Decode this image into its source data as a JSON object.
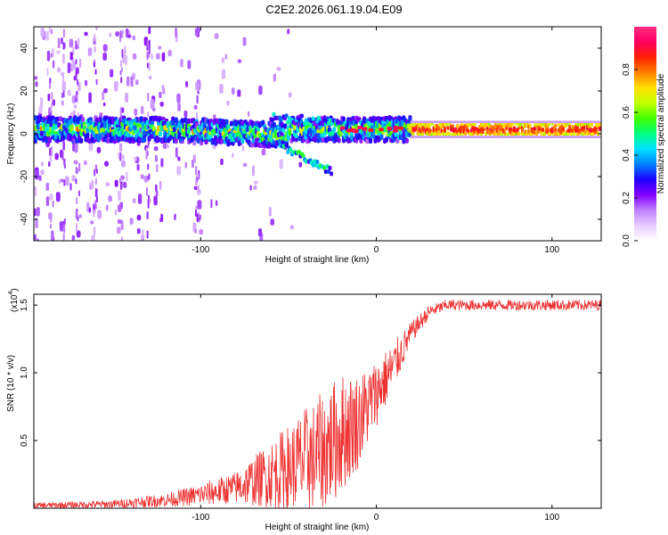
{
  "chart_data": [
    {
      "type": "heatmap",
      "title": "C2E2.2026.061.19.04.E09",
      "xlabel": "Height of straight line (km)",
      "ylabel": "Frequency (Hz)",
      "xlim": [
        -195,
        128
      ],
      "ylim": [
        -50,
        50
      ],
      "xticks": [
        -100,
        0,
        100
      ],
      "yticks": [
        -40,
        -20,
        0,
        20,
        40
      ],
      "colorbar": {
        "label": "Normalized spectral amplitude",
        "range": [
          0,
          1
        ],
        "ticks": [
          0.0,
          0.2,
          0.4,
          0.6,
          0.8
        ],
        "tick_labels": [
          "0.0",
          "0.2",
          "0.4",
          "0.6",
          "0.8"
        ],
        "colors": [
          "#ffffff",
          "#e6ccff",
          "#c080ff",
          "#8000ff",
          "#2000ff",
          "#0080ff",
          "#00e0ff",
          "#00ff80",
          "#40ff00",
          "#c0ff00",
          "#ffe000",
          "#ff8000",
          "#ff2000",
          "#ff0060",
          "#ff2a80"
        ]
      },
      "features": {
        "main_band_center_hz": 2,
        "main_band_halfwidth_hz": 5,
        "scatter_region_km": [
          -195,
          -20
        ],
        "branch_km": [
          -60,
          -25
        ],
        "branch_upper_hz": 8,
        "branch_lower_hz": -15,
        "stable_region_km": [
          20,
          128
        ]
      }
    },
    {
      "type": "line",
      "xlabel": "Height of straight line (km)",
      "ylabel": "SNR (10 * v/v)",
      "multiplier_label": "(x10",
      "multiplier_exponent": "4",
      "multiplier_close": ")",
      "xlim": [
        -195,
        128
      ],
      "ylim": [
        0,
        1.58
      ],
      "xticks": [
        -100,
        0,
        100
      ],
      "yticks": [
        0.5,
        1.0,
        1.5
      ],
      "ytick_labels": [
        "0.5",
        "1.0",
        "1.5"
      ],
      "color": "#ee3333",
      "series": [
        {
          "name": "SNR",
          "envelope_x": [
            -195,
            -150,
            -120,
            -100,
            -80,
            -60,
            -40,
            -30,
            -20,
            -10,
            0,
            10,
            20,
            30,
            40,
            60,
            80,
            100,
            128
          ],
          "envelope_mean": [
            0.02,
            0.03,
            0.06,
            0.1,
            0.15,
            0.25,
            0.35,
            0.42,
            0.55,
            0.65,
            0.85,
            1.05,
            1.3,
            1.45,
            1.5,
            1.5,
            1.5,
            1.5,
            1.5
          ],
          "envelope_spread": [
            0.02,
            0.03,
            0.05,
            0.08,
            0.12,
            0.25,
            0.4,
            0.45,
            0.45,
            0.35,
            0.25,
            0.18,
            0.08,
            0.05,
            0.04,
            0.04,
            0.04,
            0.04,
            0.04
          ]
        }
      ]
    }
  ]
}
